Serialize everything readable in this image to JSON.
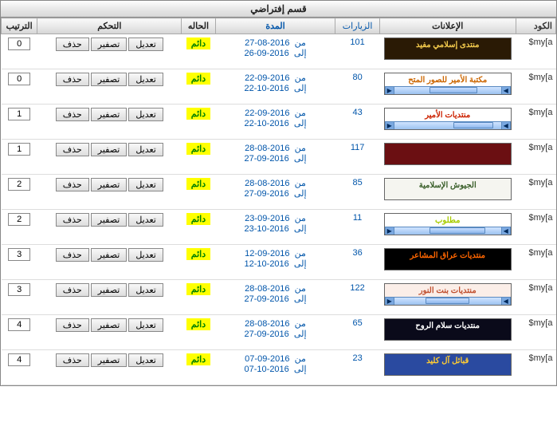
{
  "panel_title": "قسم إفتراضي",
  "headers": {
    "code": "الكود",
    "ads": "الإعلانات",
    "visits": "الزيارات",
    "duration": "المدة",
    "status": "الحاله",
    "control": "التحكم",
    "order": "الترتيب"
  },
  "labels": {
    "from": "من",
    "to": "إلى",
    "status_active": "دائم",
    "btn_edit": "تعديل",
    "btn_reset": "تصفير",
    "btn_delete": "حذف"
  },
  "rows": [
    {
      "code": "$my[a",
      "visits": "101",
      "from": "27-08-2016",
      "to": "26-09-2016",
      "order": "0",
      "banner": {
        "bg": "#2a1a05",
        "fg": "#f2c94c",
        "text": "منتدى إسلامي مفيد",
        "scroll": false
      }
    },
    {
      "code": "$my[a",
      "visits": "80",
      "from": "22-09-2016",
      "to": "22-10-2016",
      "order": "0",
      "banner": {
        "bg": "#ffffff",
        "fg": "#cc6600",
        "text": "مكتبة الأمير للصور المتح",
        "scroll": true,
        "thumbW": 60,
        "thumbPos": 30
      }
    },
    {
      "code": "$my[a",
      "visits": "43",
      "from": "22-09-2016",
      "to": "22-10-2016",
      "order": "1",
      "banner": {
        "bg": "#ffffff",
        "fg": "#cc2200",
        "text": "منتديات الأمير",
        "scroll": true,
        "thumbW": 50,
        "thumbPos": 10
      }
    },
    {
      "code": "$my[a",
      "visits": "117",
      "from": "28-08-2016",
      "to": "27-09-2016",
      "order": "1",
      "banner": {
        "bg": "#6b0f12",
        "fg": "#f5e1a4",
        "text": "",
        "scroll": false
      }
    },
    {
      "code": "$my[a",
      "visits": "85",
      "from": "28-08-2016",
      "to": "27-09-2016",
      "order": "2",
      "banner": {
        "bg": "#f5f5f0",
        "fg": "#3a5f2a",
        "text": "الجيوش الإسلامية",
        "scroll": false
      }
    },
    {
      "code": "$my[a",
      "visits": "11",
      "from": "23-09-2016",
      "to": "23-10-2016",
      "order": "2",
      "banner": {
        "bg": "#ffffff",
        "fg": "#a8cc00",
        "text": "مطلوب",
        "scroll": true,
        "thumbW": 70,
        "thumbPos": 20
      }
    },
    {
      "code": "$my[a",
      "visits": "36",
      "from": "12-09-2016",
      "to": "12-10-2016",
      "order": "3",
      "banner": {
        "bg": "#000000",
        "fg": "#ff6600",
        "text": "منتديات عراق المشاعر",
        "scroll": false
      }
    },
    {
      "code": "$my[a",
      "visits": "122",
      "from": "28-08-2016",
      "to": "27-09-2016",
      "order": "3",
      "banner": {
        "bg": "#fbeee8",
        "fg": "#c05030",
        "text": "منتديات بنت النور",
        "scroll": true,
        "thumbW": 55,
        "thumbPos": 40
      }
    },
    {
      "code": "$my[a",
      "visits": "65",
      "from": "28-08-2016",
      "to": "27-09-2016",
      "order": "4",
      "banner": {
        "bg": "#0a0a1a",
        "fg": "#ffffff",
        "text": "منتديات سلام الروح",
        "scroll": false
      }
    },
    {
      "code": "$my[a",
      "visits": "23",
      "from": "07-09-2016",
      "to": "07-10-2016",
      "order": "4",
      "banner": {
        "bg": "#2a4aa0",
        "fg": "#ffcc33",
        "text": "قبائل آل كليد",
        "scroll": false
      }
    }
  ]
}
